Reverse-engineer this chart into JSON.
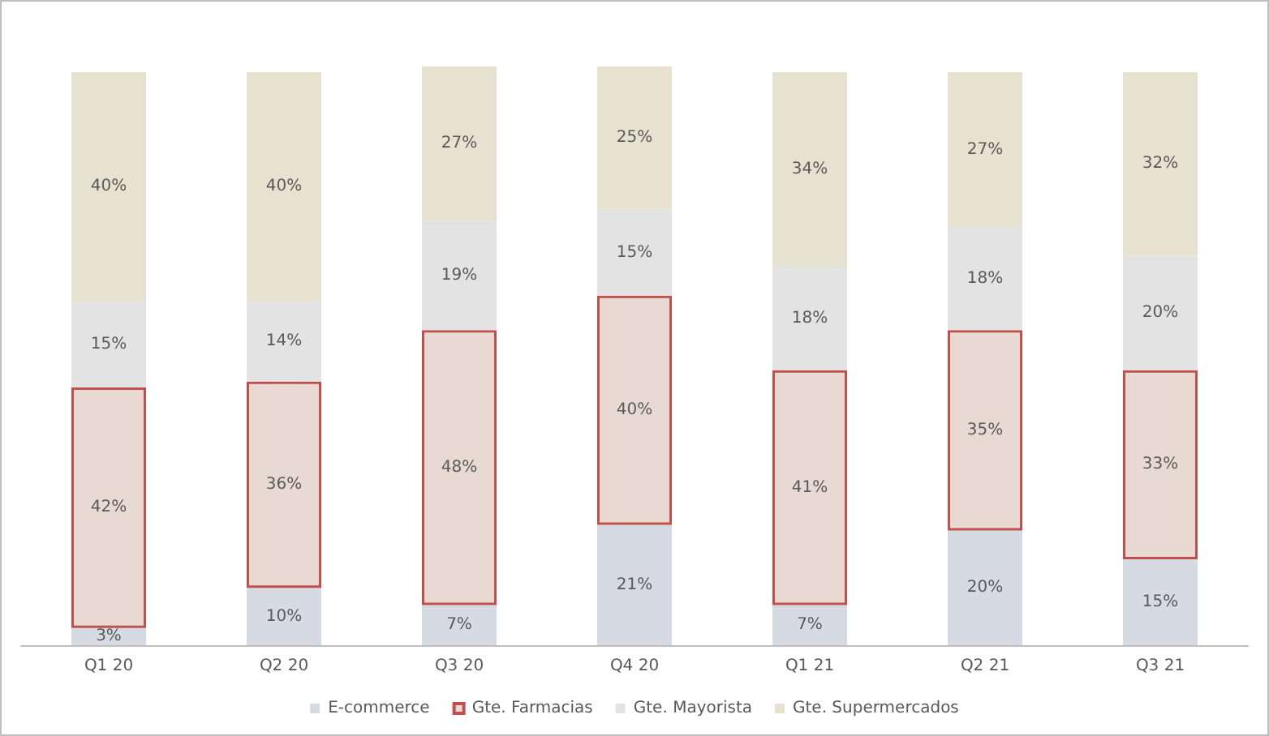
{
  "chart_data": {
    "type": "bar",
    "stacked": true,
    "categories": [
      "Q1 20",
      "Q2 20",
      "Q3 20",
      "Q4 20",
      "Q1 21",
      "Q2 21",
      "Q3 21"
    ],
    "series": [
      {
        "name": "E-commerce",
        "color": "#d5dae3",
        "values": [
          3,
          10,
          7,
          21,
          7,
          20,
          15
        ],
        "value_labels": [
          "3%",
          "10%",
          "7%",
          "21%",
          "7%",
          "20%",
          "15%"
        ]
      },
      {
        "name": "Gte. Farmacias",
        "color": "#e8dad3",
        "values": [
          42,
          36,
          48,
          40,
          41,
          35,
          33
        ],
        "value_labels": [
          "42%",
          "36%",
          "48%",
          "40%",
          "41%",
          "35%",
          "33%"
        ]
      },
      {
        "name": "Gte. Mayorista",
        "color": "#e3e3e3",
        "values": [
          15,
          14,
          19,
          15,
          18,
          18,
          20
        ],
        "value_labels": [
          "15%",
          "14%",
          "19%",
          "15%",
          "18%",
          "18%",
          "20%"
        ]
      },
      {
        "name": "Gte. Supermercados",
        "color": "#e7e1d0",
        "values": [
          40,
          40,
          27,
          25,
          34,
          27,
          32
        ],
        "value_labels": [
          "40%",
          "40%",
          "27%",
          "25%",
          "34%",
          "27%",
          "32%"
        ]
      }
    ],
    "legend": "bottom"
  }
}
